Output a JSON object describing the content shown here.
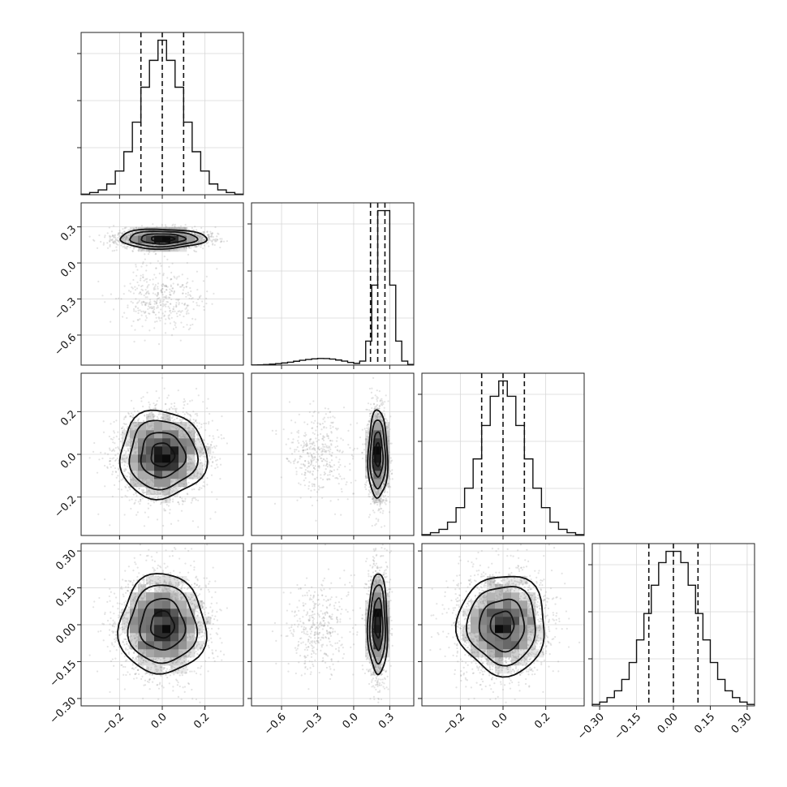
{
  "chart_data": {
    "type": "corner",
    "parameters": [
      {
        "range": [
          -0.38,
          0.38
        ],
        "ticks": [
          -0.2,
          0.0,
          0.2
        ],
        "tick_labels": [
          "−0.2",
          "0.0",
          "0.2"
        ],
        "quantiles": [
          -0.1,
          0.0,
          0.1
        ]
      },
      {
        "range": [
          -0.85,
          0.5
        ],
        "ticks": [
          -0.6,
          -0.3,
          0.0,
          0.3
        ],
        "tick_labels": [
          "−0.6",
          "−0.3",
          "0.0",
          "0.3"
        ],
        "quantiles": [
          0.14,
          0.2,
          0.26
        ]
      },
      {
        "range": [
          -0.38,
          0.38
        ],
        "ticks": [
          -0.2,
          0.0,
          0.2
        ],
        "tick_labels": [
          "−0.2",
          "0.0",
          "0.2"
        ],
        "quantiles": [
          -0.1,
          0.0,
          0.1
        ]
      },
      {
        "range": [
          -0.33,
          0.33
        ],
        "ticks": [
          -0.3,
          -0.15,
          0.0,
          0.15,
          0.3
        ],
        "tick_labels": [
          "−0.30",
          "−0.15",
          "0.00",
          "0.15",
          "0.30"
        ],
        "quantiles": [
          -0.1,
          0.0,
          0.1
        ]
      }
    ],
    "histograms": [
      {
        "param": 0,
        "bin_edges": [
          -0.38,
          -0.34,
          -0.3,
          -0.26,
          -0.22,
          -0.18,
          -0.14,
          -0.1,
          -0.06,
          -0.02,
          0.02,
          0.06,
          0.1,
          0.14,
          0.18,
          0.22,
          0.26,
          0.3,
          0.34,
          0.38
        ],
        "counts": [
          2,
          8,
          18,
          40,
          88,
          160,
          270,
          400,
          500,
          575,
          500,
          400,
          270,
          160,
          88,
          40,
          18,
          8,
          2
        ]
      },
      {
        "param": 1,
        "bin_edges": [
          -0.85,
          -0.8,
          -0.75,
          -0.7,
          -0.65,
          -0.6,
          -0.55,
          -0.5,
          -0.45,
          -0.4,
          -0.35,
          -0.3,
          -0.25,
          -0.2,
          -0.15,
          -0.1,
          -0.05,
          0.0,
          0.05,
          0.1,
          0.15,
          0.2,
          0.25,
          0.3,
          0.35,
          0.4,
          0.45,
          0.5
        ],
        "counts": [
          1,
          2,
          4,
          7,
          11,
          16,
          22,
          29,
          36,
          42,
          47,
          50,
          49,
          45,
          38,
          30,
          20,
          13,
          30,
          180,
          600,
          1160,
          1160,
          600,
          180,
          30,
          5
        ]
      },
      {
        "param": 2,
        "bin_edges": [
          -0.38,
          -0.34,
          -0.3,
          -0.26,
          -0.22,
          -0.18,
          -0.14,
          -0.1,
          -0.06,
          -0.02,
          0.02,
          0.06,
          0.1,
          0.14,
          0.18,
          0.22,
          0.26,
          0.3,
          0.34,
          0.38
        ],
        "counts": [
          3,
          10,
          22,
          48,
          100,
          170,
          275,
          395,
          500,
          555,
          500,
          395,
          275,
          170,
          100,
          48,
          22,
          10,
          3
        ]
      },
      {
        "param": 3,
        "bin_edges": [
          -0.33,
          -0.3,
          -0.27,
          -0.24,
          -0.21,
          -0.18,
          -0.15,
          -0.12,
          -0.09,
          -0.06,
          -0.03,
          0.0,
          0.03,
          0.06,
          0.09,
          0.12,
          0.15,
          0.18,
          0.21,
          0.24,
          0.27,
          0.3,
          0.33
        ],
        "counts": [
          4,
          10,
          22,
          40,
          70,
          115,
          175,
          245,
          320,
          380,
          410,
          410,
          380,
          320,
          245,
          175,
          115,
          70,
          40,
          22,
          10,
          4
        ]
      }
    ]
  }
}
